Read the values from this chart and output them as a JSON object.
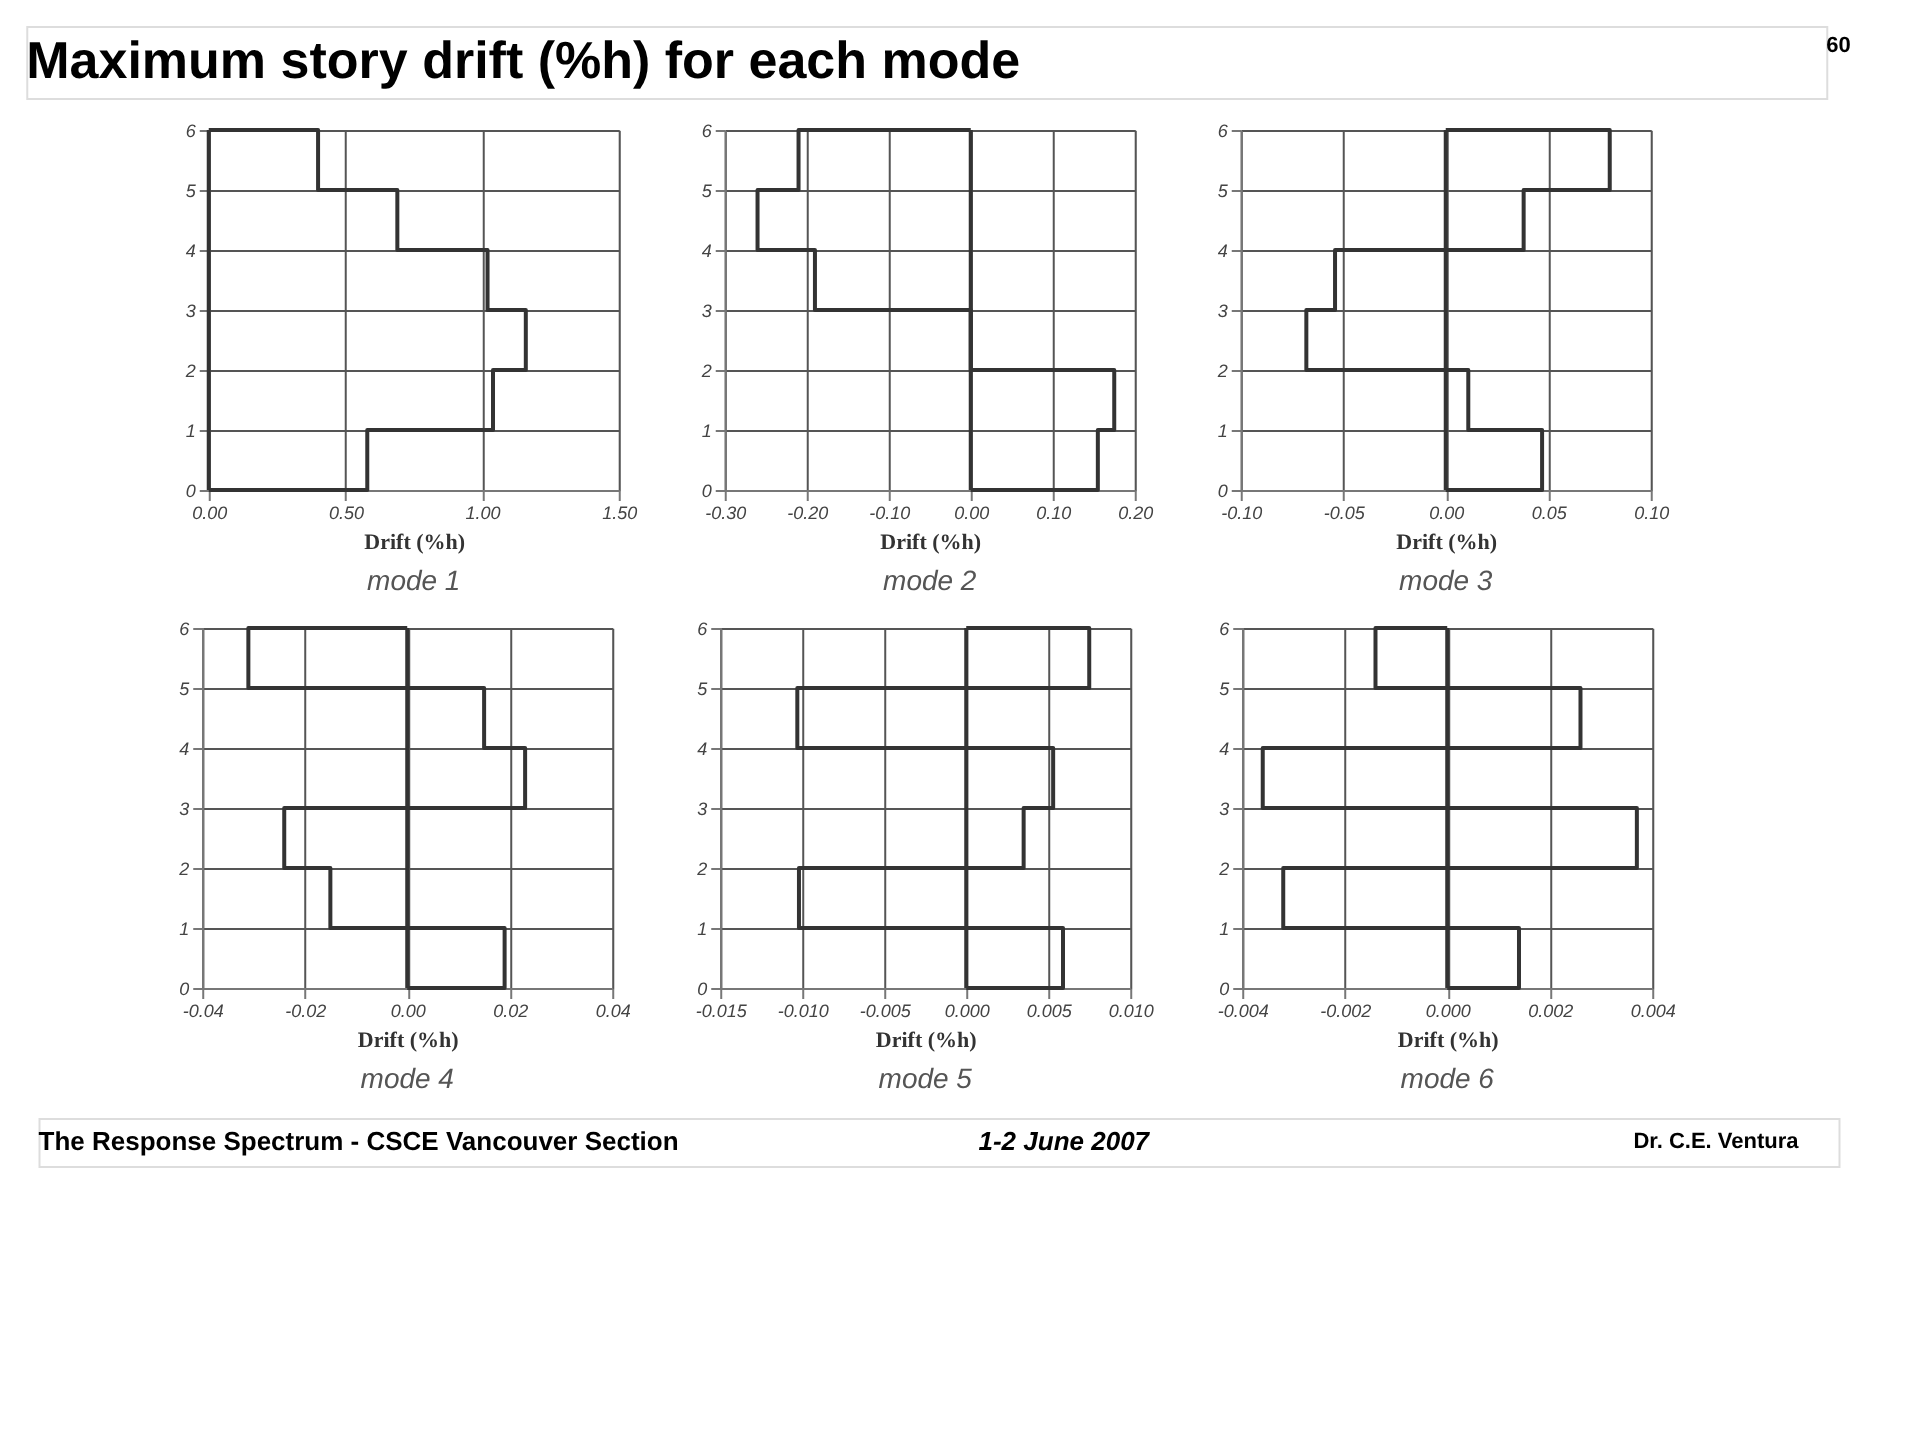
{
  "chart_data": [
    {
      "type": "line",
      "title": "mode 1",
      "xlabel": "Drift (%h)",
      "annotations": [
        "Maximum story drift (%h) for each mode",
        "60",
        "The Response Spectrum - CSCE Vancouver Section",
        "1-2 June 2007",
        "Dr. C.E. Ventura"
      ],
      "series": [
        {
          "color": "#333333",
          "x": [
            0,
            0.58,
            0.58,
            1.04,
            1.04,
            1.16,
            1.16,
            1.02,
            1.02,
            0.69,
            0.69,
            0.4,
            0.4,
            0
          ],
          "values": [
            0,
            0,
            1,
            1,
            2,
            2,
            3,
            3,
            4,
            4,
            5,
            5,
            6,
            6
          ]
        }
      ],
      "ref_lines": [
        {
          "axis": "x",
          "value": 0,
          "color": "#333333"
        }
      ],
      "xlim": [
        0,
        1.5
      ],
      "xticks": [
        {
          "value": 0,
          "label": "0.00"
        },
        {
          "value": 0.5,
          "label": "0.50"
        },
        {
          "value": 1,
          "label": "1.00"
        },
        {
          "value": 1.5,
          "label": "1.50"
        }
      ],
      "ylim": [
        0,
        6
      ],
      "yticks": [
        0,
        1,
        2,
        3,
        4,
        5,
        6
      ],
      "grid": true,
      "marker": "none",
      "line_style": "solid"
    },
    {
      "type": "line",
      "title": "mode 2",
      "xlabel": "Drift (%h)",
      "series": [
        {
          "color": "#333333",
          "x": [
            0,
            0.155,
            0.155,
            0.175,
            0.175,
            0.0,
            0.0,
            -0.19,
            -0.19,
            -0.26,
            -0.26,
            -0.21,
            -0.21,
            0
          ],
          "values": [
            0,
            0,
            1,
            1,
            2,
            2,
            3,
            3,
            4,
            4,
            5,
            5,
            6,
            6
          ]
        }
      ],
      "ref_lines": [
        {
          "axis": "x",
          "value": 0,
          "color": "#333333"
        }
      ],
      "xlim": [
        -0.3,
        0.2
      ],
      "xticks": [
        {
          "value": -0.3,
          "label": "-0.30"
        },
        {
          "value": -0.2,
          "label": "-0.20"
        },
        {
          "value": -0.1,
          "label": "-0.10"
        },
        {
          "value": 0,
          "label": "0.00"
        },
        {
          "value": 0.1,
          "label": "0.10"
        },
        {
          "value": 0.2,
          "label": "0.20"
        }
      ],
      "ylim": [
        0,
        6
      ],
      "yticks": [
        0,
        1,
        2,
        3,
        4,
        5,
        6
      ],
      "grid": true,
      "marker": "none",
      "line_style": "solid"
    },
    {
      "type": "line",
      "title": "mode 3",
      "xlabel": "Drift (%h)",
      "series": [
        {
          "color": "#333333",
          "x": [
            0,
            0.047,
            0.047,
            0.011,
            0.011,
            -0.068,
            -0.068,
            -0.054,
            -0.054,
            0.038,
            0.038,
            0.08,
            0.08,
            0
          ],
          "values": [
            0,
            0,
            1,
            1,
            2,
            2,
            3,
            3,
            4,
            4,
            5,
            5,
            6,
            6
          ]
        }
      ],
      "ref_lines": [
        {
          "axis": "x",
          "value": 0,
          "color": "#333333"
        }
      ],
      "xlim": [
        -0.1,
        0.1
      ],
      "xticks": [
        {
          "value": -0.1,
          "label": "-0.10"
        },
        {
          "value": -0.05,
          "label": "-0.05"
        },
        {
          "value": 0,
          "label": "0.00"
        },
        {
          "value": 0.05,
          "label": "0.05"
        },
        {
          "value": 0.1,
          "label": "0.10"
        }
      ],
      "ylim": [
        0,
        6
      ],
      "yticks": [
        0,
        1,
        2,
        3,
        4,
        5,
        6
      ],
      "grid": true,
      "marker": "none",
      "line_style": "solid"
    },
    {
      "type": "line",
      "title": "mode 4",
      "xlabel": "Drift (%h)",
      "series": [
        {
          "color": "#333333",
          "x": [
            0,
            0.019,
            0.019,
            -0.015,
            -0.015,
            -0.024,
            -0.024,
            0.023,
            0.023,
            0.015,
            0.015,
            -0.031,
            -0.031,
            0
          ],
          "values": [
            0,
            0,
            1,
            1,
            2,
            2,
            3,
            3,
            4,
            4,
            5,
            5,
            6,
            6
          ]
        }
      ],
      "ref_lines": [
        {
          "axis": "x",
          "value": 0,
          "color": "#333333"
        }
      ],
      "xlim": [
        -0.04,
        0.04
      ],
      "xticks": [
        {
          "value": -0.04,
          "label": "-0.04"
        },
        {
          "value": -0.02,
          "label": "-0.02"
        },
        {
          "value": 0,
          "label": "0.00"
        },
        {
          "value": 0.02,
          "label": "0.02"
        },
        {
          "value": 0.04,
          "label": "0.04"
        }
      ],
      "ylim": [
        0,
        6
      ],
      "yticks": [
        0,
        1,
        2,
        3,
        4,
        5,
        6
      ],
      "grid": true,
      "marker": "none",
      "line_style": "solid"
    },
    {
      "type": "line",
      "title": "mode 5",
      "xlabel": "Drift (%h)",
      "series": [
        {
          "color": "#333333",
          "x": [
            0,
            0.0059,
            0.0059,
            -0.0102,
            -0.0102,
            0.0035,
            0.0035,
            0.0053,
            0.0053,
            -0.0103,
            -0.0103,
            0.0075,
            0.0075,
            0
          ],
          "values": [
            0,
            0,
            1,
            1,
            2,
            2,
            3,
            3,
            4,
            4,
            5,
            5,
            6,
            6
          ]
        }
      ],
      "ref_lines": [
        {
          "axis": "x",
          "value": 0,
          "color": "#333333"
        }
      ],
      "xlim": [
        -0.015,
        0.01
      ],
      "xticks": [
        {
          "value": -0.015,
          "label": "-0.015"
        },
        {
          "value": -0.01,
          "label": "-0.010"
        },
        {
          "value": -0.005,
          "label": "-0.005"
        },
        {
          "value": 0,
          "label": "0.000"
        },
        {
          "value": 0.005,
          "label": "0.005"
        },
        {
          "value": 0.01,
          "label": "0.010"
        }
      ],
      "ylim": [
        0,
        6
      ],
      "yticks": [
        0,
        1,
        2,
        3,
        4,
        5,
        6
      ],
      "grid": true,
      "marker": "none",
      "line_style": "solid"
    },
    {
      "type": "line",
      "title": "mode 6",
      "xlabel": "Drift (%h)",
      "series": [
        {
          "color": "#333333",
          "x": [
            0,
            0.0014,
            0.0014,
            -0.0032,
            -0.0032,
            0.0037,
            0.0037,
            -0.0036,
            -0.0036,
            0.0026,
            0.0026,
            -0.0014,
            -0.0014,
            0
          ],
          "values": [
            0,
            0,
            1,
            1,
            2,
            2,
            3,
            3,
            4,
            4,
            5,
            5,
            6,
            6
          ]
        }
      ],
      "ref_lines": [
        {
          "axis": "x",
          "value": 0,
          "color": "#333333"
        }
      ],
      "xlim": [
        -0.004,
        0.004
      ],
      "xticks": [
        {
          "value": -0.004,
          "label": "-0.004"
        },
        {
          "value": -0.002,
          "label": "-0.002"
        },
        {
          "value": 0,
          "label": "0.000"
        },
        {
          "value": 0.002,
          "label": "0.002"
        },
        {
          "value": 0.004,
          "label": "0.004"
        }
      ],
      "ylim": [
        0,
        6
      ],
      "yticks": [
        0,
        1,
        2,
        3,
        4,
        5,
        6
      ],
      "grid": true,
      "marker": "none",
      "line_style": "solid"
    }
  ]
}
